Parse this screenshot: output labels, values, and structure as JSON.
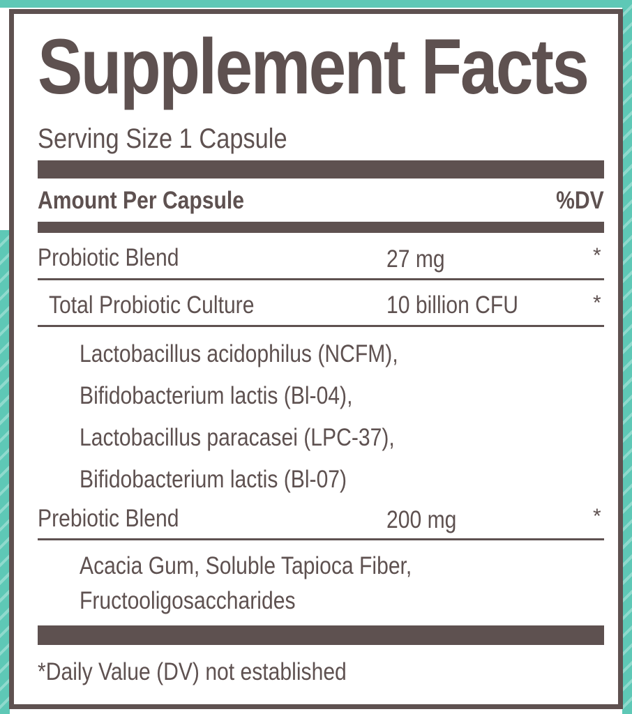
{
  "title": "Supplement Facts",
  "serving_size": "Serving Size 1 Capsule",
  "header": {
    "amount_label": "Amount Per Capsule",
    "dv_label": "%DV"
  },
  "rows": [
    {
      "name": "Probiotic Blend",
      "amount": "27 mg",
      "dv": "*"
    },
    {
      "name": "Total Probiotic Culture",
      "amount": "10 billion CFU",
      "dv": "*"
    },
    {
      "name": "Prebiotic Blend",
      "amount": "200 mg",
      "dv": "*"
    }
  ],
  "probiotic_strains": [
    "Lactobacillus acidophilus (NCFM),",
    "Bifidobacterium lactis (Bl-04),",
    "Lactobacillus paracasei (LPC-37),",
    "Bifidobacterium lactis (Bl-07)"
  ],
  "prebiotic_ingredients": [
    "Acacia Gum, Soluble Tapioca Fiber,",
    "Fructooligosaccharides"
  ],
  "footnote": "*Daily Value (DV) not established",
  "colors": {
    "text": "#5e5150",
    "accent": "#5ec8b6"
  }
}
